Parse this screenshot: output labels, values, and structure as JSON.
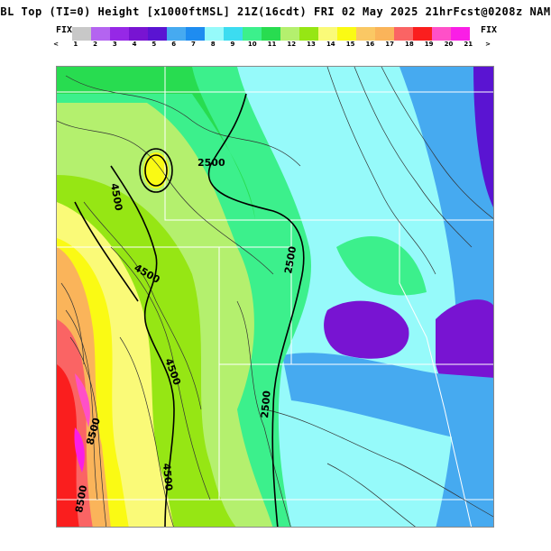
{
  "header": {
    "title": "BL Top (TI=0) Height [x1000ftMSL] 21Z(16cdt) FRI 02 May 2025 21hrFcst@0208z NAM",
    "fix_left": "FIX",
    "fix_right": "FIX"
  },
  "legend": {
    "ticks": [
      "<",
      "1",
      "2",
      "3",
      "4",
      "5",
      "6",
      "7",
      "8",
      "9",
      "10",
      "11",
      "12",
      "13",
      "14",
      "15",
      "16",
      "17",
      "18",
      "19",
      "20",
      "21",
      ">"
    ],
    "colors": [
      "#c8c8c8",
      "#b464f0",
      "#9628e6",
      "#7814d2",
      "#5a14d2",
      "#46aaf0",
      "#1e8cf0",
      "#96fafa",
      "#3cdcf0",
      "#3cf08c",
      "#28dc50",
      "#b4f06e",
      "#96e614",
      "#fafa78",
      "#fafa14",
      "#fac864",
      "#fab45a",
      "#fa6464",
      "#fa1e1e",
      "#ff50c8",
      "#fa1ee6"
    ]
  },
  "map": {
    "contour_labels": [
      "2500",
      "4500",
      "4500",
      "2500",
      "4500",
      "2500",
      "4500",
      "8500",
      "8500"
    ]
  }
}
